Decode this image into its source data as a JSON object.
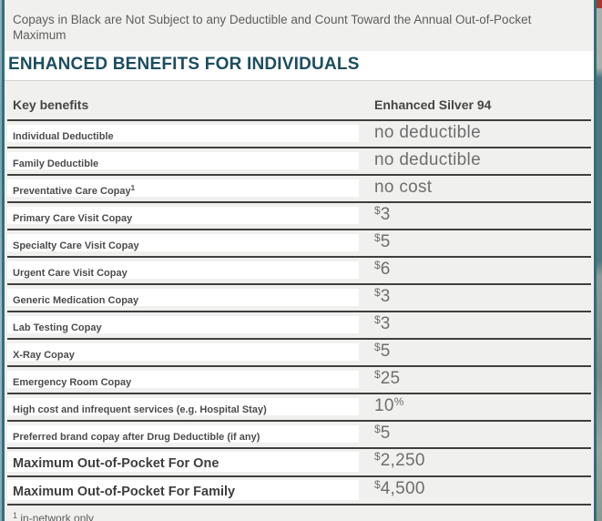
{
  "note": "Copays in Black are Not Subject to any Deductible and Count Toward the Annual Out-of-Pocket Maximum",
  "title": "ENHANCED BENEFITS FOR INDIVIDUALS",
  "table": {
    "columns": {
      "key": "Key benefits",
      "plan": "Enhanced Silver 94"
    },
    "rows": [
      {
        "label": "Individual Deductible",
        "label_sup": "",
        "value_prefix": "",
        "value": "no deductible",
        "value_suffix": ""
      },
      {
        "label": "Family Deductible",
        "label_sup": "",
        "value_prefix": "",
        "value": "no deductible",
        "value_suffix": ""
      },
      {
        "label": "Preventative Care Copay",
        "label_sup": "1",
        "value_prefix": "",
        "value": "no cost",
        "value_suffix": ""
      },
      {
        "label": "Primary Care Visit Copay",
        "label_sup": "",
        "value_prefix": "$",
        "value": "3",
        "value_suffix": ""
      },
      {
        "label": "Specialty Care Visit Copay",
        "label_sup": "",
        "value_prefix": "$",
        "value": "5",
        "value_suffix": ""
      },
      {
        "label": "Urgent Care Visit Copay",
        "label_sup": "",
        "value_prefix": "$",
        "value": "6",
        "value_suffix": ""
      },
      {
        "label": "Generic Medication Copay",
        "label_sup": "",
        "value_prefix": "$",
        "value": "3",
        "value_suffix": ""
      },
      {
        "label": "Lab Testing Copay",
        "label_sup": "",
        "value_prefix": "$",
        "value": "3",
        "value_suffix": ""
      },
      {
        "label": "X-Ray Copay",
        "label_sup": "",
        "value_prefix": "$",
        "value": "5",
        "value_suffix": ""
      },
      {
        "label": "Emergency Room Copay",
        "label_sup": "",
        "value_prefix": "$",
        "value": "25",
        "value_suffix": ""
      },
      {
        "label": "High cost and infrequent services (e.g. Hospital Stay)",
        "label_sup": "",
        "value_prefix": "",
        "value": "10",
        "value_suffix": "%"
      },
      {
        "label": "Preferred brand copay after Drug Deductible (if any)",
        "label_sup": "",
        "value_prefix": "$",
        "value": "5",
        "value_suffix": ""
      },
      {
        "label": "Maximum Out-of-Pocket For One",
        "label_sup": "",
        "value_prefix": "$",
        "value": "2,250",
        "value_suffix": ""
      },
      {
        "label": "Maximum Out-of-Pocket For Family",
        "label_sup": "",
        "value_prefix": "$",
        "value": "4,500",
        "value_suffix": ""
      }
    ]
  },
  "footnote": {
    "sup": "1",
    "text": "in-network only"
  },
  "colors": {
    "accent_teal_border": "#346e7a",
    "title_teal": "#1d4d60",
    "row_separator": "#3f3f3f",
    "page_background": "#f0f0ef",
    "label_box_background": "#ffffff",
    "value_text": "#6e6e6e",
    "corner_red": "#a23a31"
  }
}
